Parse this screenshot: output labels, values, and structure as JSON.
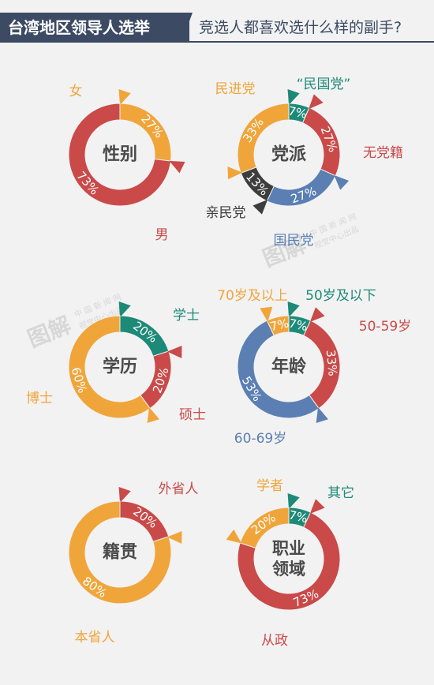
{
  "header": {
    "title": "台湾地区领导人选举",
    "subtitle": "竞选人都喜欢选什么样的副手?"
  },
  "watermark": {
    "brand": "图解",
    "line1": "中 国 新 闻 网",
    "line2": "视觉中心出品"
  },
  "colors": {
    "orange": "#f0a53b",
    "red": "#c94a49",
    "teal": "#1d8a78",
    "blue": "#5b7fb3",
    "dark": "#3d3d3d",
    "header": "#3c4a63",
    "center_text": "#4a4a4a"
  },
  "chart_data": [
    {
      "type": "pie",
      "center_label": "性别",
      "slices": [
        {
          "label": "女",
          "value": 27,
          "color": "#f0a53b"
        },
        {
          "label": "男",
          "value": 73,
          "color": "#c94a49"
        }
      ]
    },
    {
      "type": "pie",
      "center_label": "党派",
      "slices": [
        {
          "label": "“民国党”",
          "value": 7,
          "color": "#1d8a78"
        },
        {
          "label": "无党籍",
          "value": 27,
          "color": "#c94a49"
        },
        {
          "label": "国民党",
          "value": 27,
          "color": "#5b7fb3"
        },
        {
          "label": "亲民党",
          "value": 13,
          "color": "#3d3d3d"
        },
        {
          "label": "民进党",
          "value": 33,
          "color": "#f0a53b"
        }
      ]
    },
    {
      "type": "pie",
      "center_label": "学历",
      "slices": [
        {
          "label": "学士",
          "value": 20,
          "color": "#1d8a78"
        },
        {
          "label": "硕士",
          "value": 20,
          "color": "#c94a49"
        },
        {
          "label": "博士",
          "value": 60,
          "color": "#f0a53b"
        }
      ]
    },
    {
      "type": "pie",
      "center_label": "年龄",
      "slices": [
        {
          "label": "50岁及以下",
          "value": 7,
          "color": "#1d8a78"
        },
        {
          "label": "50-59岁",
          "value": 33,
          "color": "#c94a49"
        },
        {
          "label": "60-69岁",
          "value": 53,
          "color": "#5b7fb3"
        },
        {
          "label": "70岁及以上",
          "value": 7,
          "color": "#f0a53b"
        }
      ]
    },
    {
      "type": "pie",
      "center_label": "籍贯",
      "slices": [
        {
          "label": "外省人",
          "value": 20,
          "color": "#c94a49"
        },
        {
          "label": "本省人",
          "value": 80,
          "color": "#f0a53b"
        }
      ]
    },
    {
      "type": "pie",
      "center_label": "职业领域",
      "slices": [
        {
          "label": "其它",
          "value": 7,
          "color": "#1d8a78"
        },
        {
          "label": "从政",
          "value": 73,
          "color": "#c94a49"
        },
        {
          "label": "学者",
          "value": 20,
          "color": "#f0a53b"
        }
      ]
    }
  ]
}
